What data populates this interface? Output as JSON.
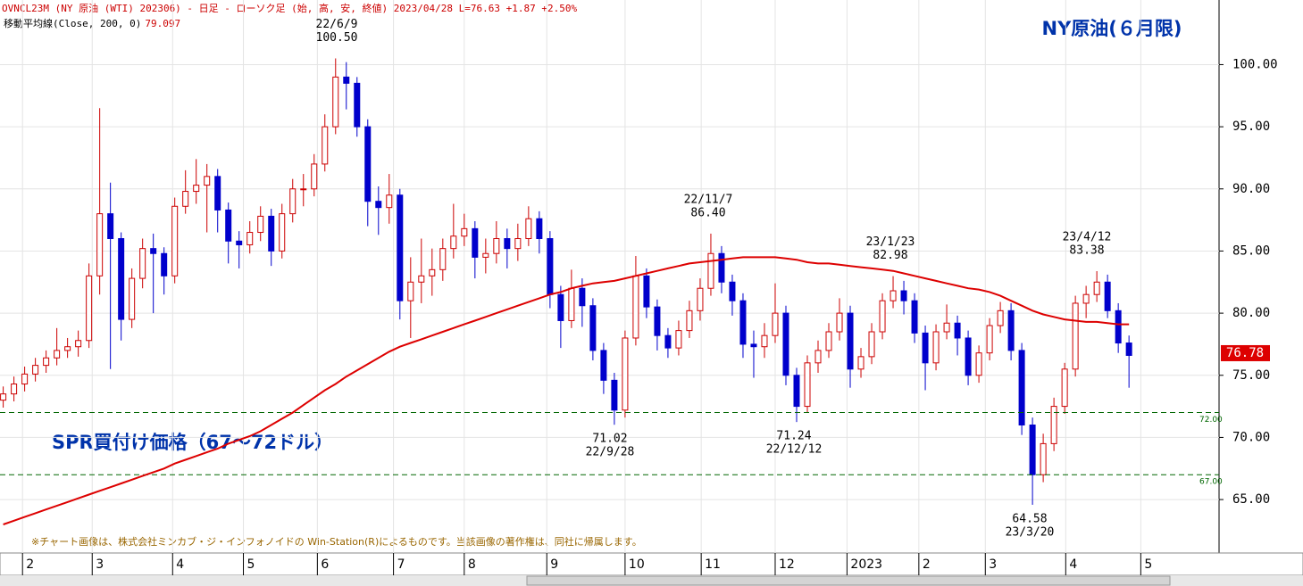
{
  "chart_data": {
    "type": "candlestick",
    "header": "OVNCL23M (NY 原油 (WTI) 202306) - 日足 - ローソク足 (始, 高, 安, 終値)  2023/04/28 L=76.63 +1.87 +2.50%",
    "indicator_label": "移動平均線(Close, 200, 0)",
    "indicator_value": "79.097",
    "title": "NY原油(６月限)",
    "band_label": "SPR買付け価格（67～72ドル）",
    "footnote": "※チャート画像は、株式会社ミンカブ・ジ・インフォノイドの Win-Station(R)によるものです。当該画像の著作権は、同社に帰属します。",
    "up_color": "#cc0000",
    "down_color": "#0000cc",
    "open": [
      73.0,
      73.5,
      74.3,
      75.1,
      75.8,
      76.4,
      77.0,
      77.3,
      77.8,
      83,
      88,
      86,
      79.5,
      82.8,
      85.2,
      84.8,
      83,
      88.6,
      89.8,
      90.3,
      91,
      88.3,
      85.8,
      85.5,
      86.5,
      87.8,
      85,
      88,
      90,
      90,
      92,
      95,
      99,
      98.5,
      95,
      89,
      88.5,
      89.5,
      81,
      82.5,
      83,
      83.5,
      85.2,
      86.2,
      86.8,
      84.5,
      84.8,
      86,
      85.2,
      86,
      87.6,
      86,
      81.5,
      79.4,
      82,
      80.6,
      77,
      74.6,
      72.2,
      78,
      83,
      80.5,
      78.2,
      77.2,
      78.6,
      80.2,
      82,
      84.8,
      82.5,
      81,
      77.5,
      77.3,
      78.2,
      80,
      75,
      72.5,
      76,
      77,
      78.5,
      80,
      75.5,
      76.5,
      78.5,
      81,
      81.8,
      81,
      78.4,
      76,
      78.5,
      79.2,
      78,
      75,
      76.8,
      79,
      80.2,
      77,
      71,
      67,
      69.5,
      72.5,
      75.5,
      80.8,
      81.5,
      82.5,
      80.2,
      77.6
    ],
    "high": [
      74.1,
      74.9,
      75.7,
      76.4,
      77.0,
      78.8,
      78.0,
      78.6,
      84.0,
      96.5,
      90.5,
      86.5,
      83.6,
      86.0,
      86.4,
      85.3,
      89.3,
      91.5,
      92.4,
      92.0,
      91.6,
      88.9,
      86.6,
      87.4,
      88.6,
      88.4,
      88.8,
      90.8,
      91.2,
      92.8,
      96.0,
      100.5,
      100.2,
      99.0,
      95.6,
      90.2,
      91.2,
      90.0,
      84.5,
      86.0,
      85.2,
      86.0,
      88.8,
      88.0,
      87.4,
      86.0,
      87.4,
      86.8,
      87.2,
      88.6,
      88.2,
      86.6,
      82.2,
      83.5,
      82.8,
      81.2,
      77.6,
      75.2,
      78.6,
      84.6,
      83.6,
      81.1,
      78.8,
      79.4,
      81.0,
      82.8,
      86.4,
      85.4,
      83.1,
      81.6,
      78.6,
      79.2,
      82.4,
      80.6,
      75.6,
      76.6,
      77.8,
      79.2,
      81.2,
      80.6,
      77.2,
      79.2,
      81.6,
      82.98,
      82.6,
      81.6,
      79.0,
      79.1,
      80.7,
      79.8,
      78.6,
      77.4,
      79.6,
      80.9,
      80.8,
      77.6,
      71.6,
      70.3,
      73.2,
      76.0,
      81.4,
      82.2,
      83.38,
      83.1,
      80.8,
      78.2
    ],
    "low": [
      72.4,
      72.9,
      73.7,
      74.5,
      75.2,
      75.8,
      76.4,
      76.5,
      77.2,
      81.5,
      75.5,
      77.8,
      78.8,
      82.0,
      80.0,
      81.5,
      82.4,
      88.0,
      88.8,
      86.5,
      86.5,
      84.0,
      83.6,
      84.8,
      85.8,
      83.8,
      84.4,
      87.3,
      88.6,
      89.4,
      91.4,
      94.4,
      96.4,
      94.2,
      87.0,
      86.3,
      87.2,
      79.5,
      78.0,
      80.8,
      81.4,
      82.6,
      84.4,
      85.4,
      82.8,
      83.2,
      84.0,
      83.6,
      84.2,
      85.4,
      84.8,
      80.4,
      77.2,
      78.8,
      78.9,
      76.2,
      73.5,
      71.02,
      71.6,
      77.4,
      79.6,
      77.0,
      76.4,
      76.6,
      78.0,
      79.4,
      81.4,
      81.6,
      79.8,
      76.4,
      74.8,
      76.4,
      77.6,
      74.2,
      71.24,
      72.0,
      75.2,
      76.4,
      77.8,
      74.0,
      74.8,
      75.9,
      77.9,
      80.4,
      79.9,
      77.6,
      73.8,
      75.4,
      77.9,
      76.6,
      74.2,
      74.4,
      76.2,
      78.4,
      76.2,
      70.2,
      64.58,
      66.4,
      68.9,
      71.9,
      74.9,
      79.6,
      80.9,
      79.6,
      76.8,
      74.0
    ],
    "close": [
      73.5,
      74.3,
      75.1,
      75.8,
      76.4,
      77.0,
      77.3,
      77.8,
      83,
      88,
      86,
      79.5,
      82.8,
      85.2,
      84.8,
      83,
      88.6,
      89.8,
      90.3,
      91,
      88.3,
      85.8,
      85.5,
      86.5,
      87.8,
      85,
      88,
      90,
      90,
      92,
      95,
      99,
      98.5,
      95,
      89,
      88.5,
      89.5,
      81,
      82.5,
      83,
      83.5,
      85.2,
      86.2,
      86.8,
      84.5,
      84.8,
      86,
      85.2,
      86,
      87.6,
      86,
      81.5,
      79.4,
      82,
      80.6,
      77,
      74.6,
      72.2,
      78,
      83,
      80.5,
      78.2,
      77.2,
      78.6,
      80.2,
      82,
      84.8,
      82.5,
      81,
      77.5,
      77.3,
      78.2,
      80,
      75,
      72.5,
      76,
      77,
      78.5,
      80,
      75.5,
      76.5,
      78.5,
      81,
      81.8,
      81,
      78.4,
      76,
      78.5,
      79.2,
      78,
      75,
      76.8,
      79,
      80.2,
      77,
      71,
      67,
      69.5,
      72.5,
      75.5,
      80.8,
      81.5,
      82.5,
      80.2,
      77.6,
      76.6
    ],
    "moving_average": {
      "color": "#dd0000",
      "values": [
        63.0,
        63.3,
        63.6,
        63.9,
        64.2,
        64.5,
        64.8,
        65.1,
        65.4,
        65.7,
        66.0,
        66.3,
        66.6,
        66.9,
        67.2,
        67.5,
        67.9,
        68.2,
        68.5,
        68.8,
        69.1,
        69.5,
        69.8,
        70.1,
        70.5,
        71.0,
        71.5,
        72.0,
        72.6,
        73.2,
        73.8,
        74.3,
        74.9,
        75.4,
        75.9,
        76.4,
        76.9,
        77.3,
        77.6,
        77.9,
        78.2,
        78.5,
        78.8,
        79.1,
        79.4,
        79.7,
        80.0,
        80.3,
        80.6,
        80.9,
        81.2,
        81.5,
        81.7,
        82.0,
        82.2,
        82.4,
        82.5,
        82.6,
        82.8,
        83.0,
        83.2,
        83.4,
        83.6,
        83.8,
        84.0,
        84.1,
        84.2,
        84.3,
        84.4,
        84.5,
        84.5,
        84.5,
        84.5,
        84.4,
        84.3,
        84.1,
        84.0,
        84.0,
        83.9,
        83.8,
        83.7,
        83.6,
        83.5,
        83.4,
        83.2,
        83.0,
        82.8,
        82.6,
        82.4,
        82.2,
        82.0,
        81.9,
        81.7,
        81.4,
        81.0,
        80.6,
        80.2,
        79.9,
        79.7,
        79.5,
        79.4,
        79.3,
        79.3,
        79.2,
        79.1,
        79.1
      ]
    },
    "ylim": [
      60.7,
      105.2
    ],
    "yticks": [
      {
        "value": 65,
        "label": "65.00"
      },
      {
        "value": 70,
        "label": "70.00"
      },
      {
        "value": 75,
        "label": "75.00"
      },
      {
        "value": 80,
        "label": "80.00"
      },
      {
        "value": 85,
        "label": "85.00"
      },
      {
        "value": 90,
        "label": "90.00"
      },
      {
        "value": 95,
        "label": "95.00"
      },
      {
        "value": 100,
        "label": "100.00"
      }
    ],
    "xlim": [
      -0.3,
      113.4
    ],
    "xticks": [
      {
        "value": 1.8,
        "label": "2"
      },
      {
        "value": 8.3,
        "label": "3"
      },
      {
        "value": 15.8,
        "label": "4"
      },
      {
        "value": 22.4,
        "label": "5"
      },
      {
        "value": 29.3,
        "label": "6"
      },
      {
        "value": 36.4,
        "label": "7"
      },
      {
        "value": 43.0,
        "label": "8"
      },
      {
        "value": 50.7,
        "label": "9"
      },
      {
        "value": 58.0,
        "label": "10"
      },
      {
        "value": 65.1,
        "label": "11"
      },
      {
        "value": 72.0,
        "label": "12"
      },
      {
        "value": 78.7,
        "label": "2023"
      },
      {
        "value": 85.4,
        "label": "2"
      },
      {
        "value": 91.6,
        "label": "3"
      },
      {
        "value": 99.1,
        "label": "4"
      },
      {
        "value": 106.1,
        "label": "5"
      }
    ],
    "reference_lines": {
      "color": "#006600",
      "lines": [
        {
          "value": 72,
          "label": "72.00"
        },
        {
          "value": 67,
          "label": "67.00"
        }
      ]
    },
    "last_price": {
      "value": 76.78,
      "label": "76.78",
      "color": "#dd0000"
    },
    "annotations": [
      {
        "date": "22/6/9",
        "value": 100.5,
        "value_label": "100.50"
      },
      {
        "date": "22/11/7",
        "value": 86.4,
        "value_label": "86.40"
      },
      {
        "date": "23/1/23",
        "value": 82.98,
        "value_label": "82.98"
      },
      {
        "date": "23/4/12",
        "value": 83.38,
        "value_label": "83.38"
      },
      {
        "date": "22/9/28",
        "value": 71.02,
        "value_label": "71.02"
      },
      {
        "date": "22/12/12",
        "value": 71.24,
        "value_label": "71.24"
      },
      {
        "date": "23/3/20",
        "value": 64.58,
        "value_label": "64.58"
      }
    ]
  }
}
